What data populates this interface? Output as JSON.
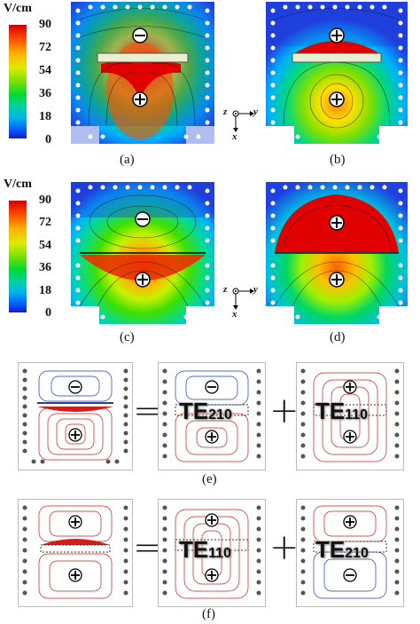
{
  "colorbar": {
    "unit": "V/cm",
    "ticks": [
      "90",
      "72",
      "54",
      "36",
      "18",
      "0"
    ],
    "colors": [
      "#d20000",
      "#ff4a00",
      "#ffb000",
      "#dcec00",
      "#78e000",
      "#00d838",
      "#00d2a0",
      "#00b4e8",
      "#0060ff",
      "#1818d0"
    ]
  },
  "captions": [
    "(a)",
    "(b)",
    "(c)",
    "(d)",
    "(e)",
    "(f)"
  ],
  "axes": {
    "z": "z",
    "y": "y",
    "x": "x"
  },
  "symbols": {
    "plus": "⊕",
    "minus": "⊖",
    "equals": "=",
    "add": "+"
  },
  "modes": {
    "e_first": {
      "main": "TE",
      "sub": "210"
    },
    "e_second": {
      "main": "TE",
      "sub": "110"
    },
    "f_first": {
      "main": "TE",
      "sub": "110"
    },
    "f_second": {
      "main": "TE",
      "sub": "210"
    }
  },
  "colors": {
    "bg_blue": "#1f3fd8",
    "line_red": "#d21b1b",
    "line_blue": "#1b3bc8",
    "via_grey": "#555555"
  }
}
